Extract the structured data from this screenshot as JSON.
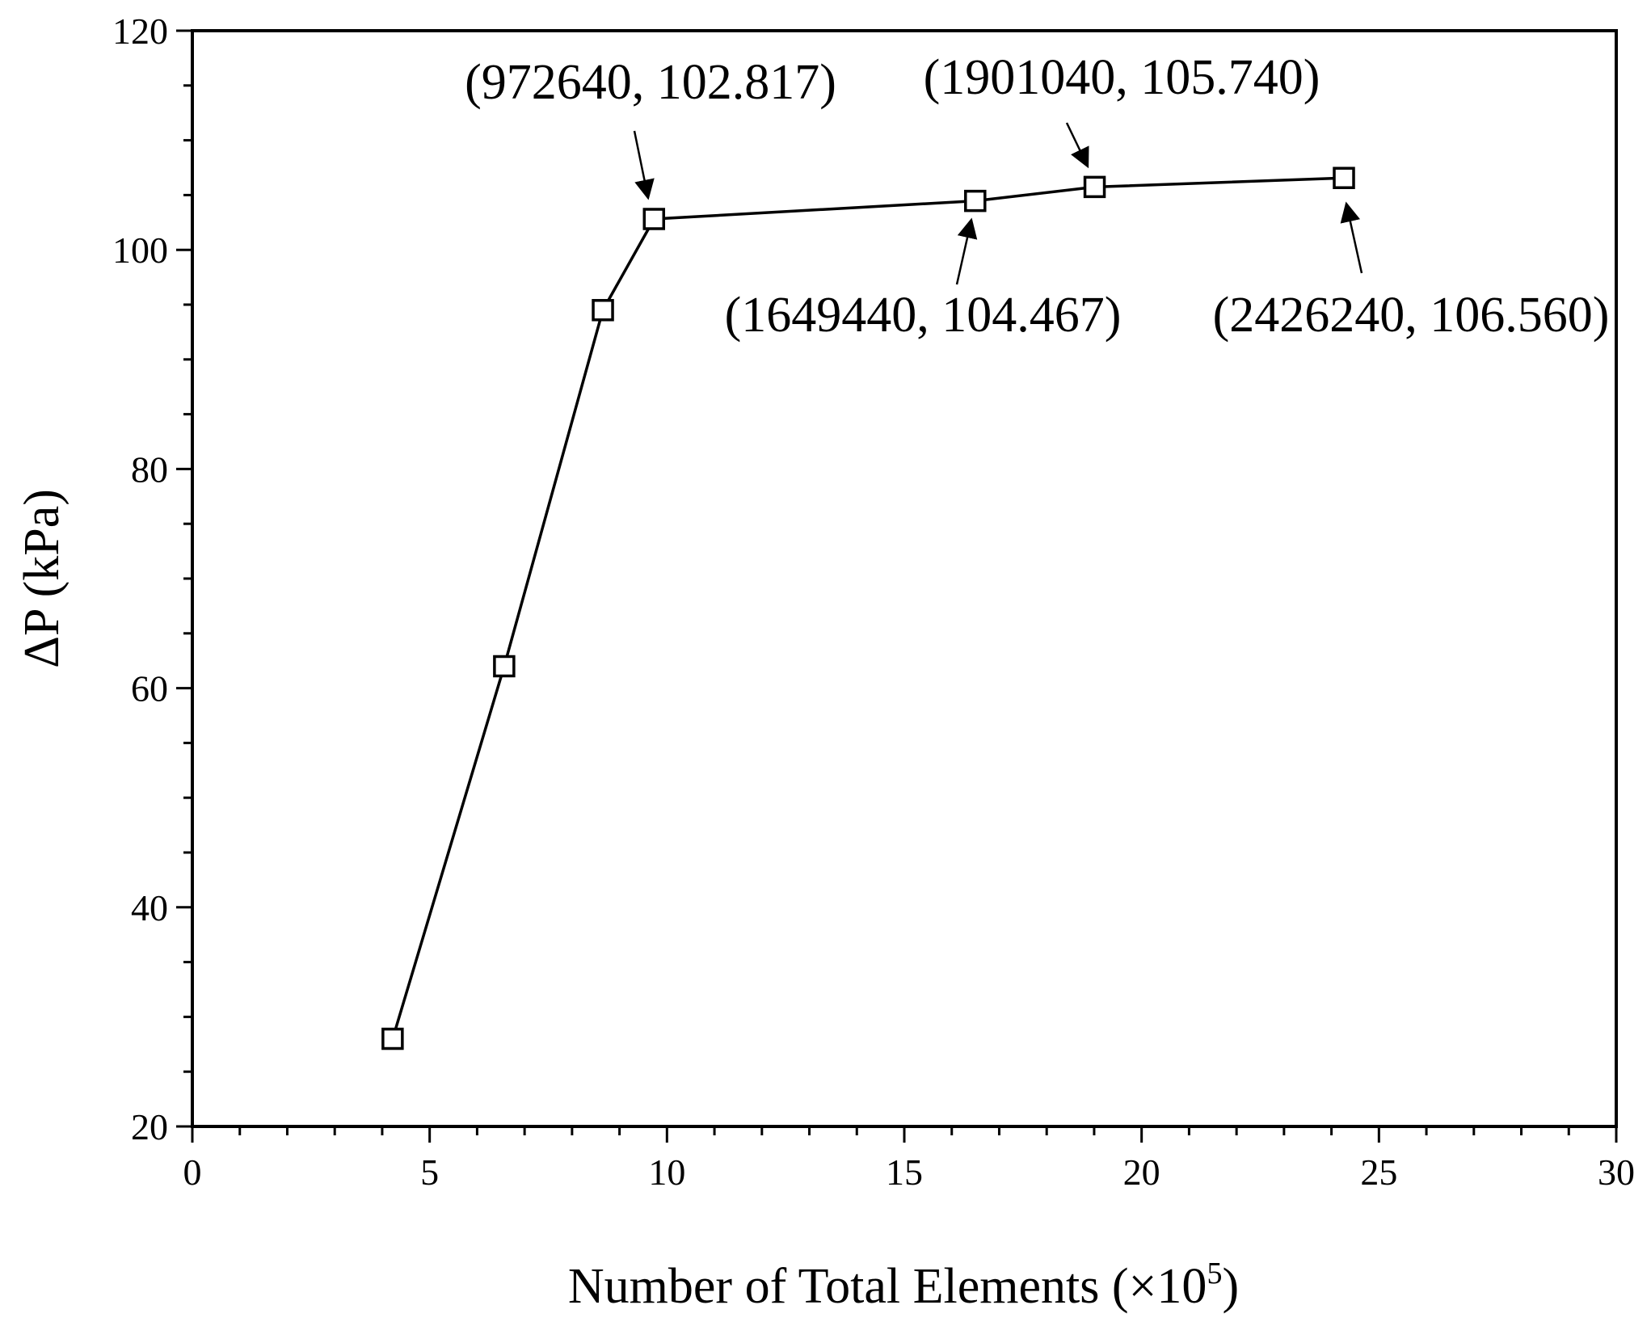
{
  "chart_data": {
    "type": "line",
    "xlabel": "Number of Total Elements (×10⁵)",
    "xlabel_parts": {
      "main": "Number of Total Elements (×10",
      "superscript": "5",
      "close": ")"
    },
    "ylabel": "ΔP (kPa)",
    "xlim": [
      0,
      30
    ],
    "ylim": [
      20,
      120
    ],
    "x_ticks": [
      "0",
      "5",
      "10",
      "15",
      "20",
      "25",
      "30"
    ],
    "y_ticks": [
      "20",
      "40",
      "60",
      "80",
      "100",
      "120"
    ],
    "grid": false,
    "series": [
      {
        "marker": "open-square",
        "color": "#000000",
        "x": [
          4.22,
          6.57,
          8.65,
          9.7264,
          16.4944,
          19.0104,
          24.2624
        ],
        "y": [
          28.0,
          62.0,
          94.5,
          102.817,
          104.467,
          105.74,
          106.56
        ]
      }
    ],
    "annotations": [
      {
        "text": "(972640, 102.817)",
        "x": 9.7264,
        "y": 102.817
      },
      {
        "text": "(1901040, 105.740)",
        "x": 19.0104,
        "y": 105.74
      },
      {
        "text": "(1649440, 104.467)",
        "x": 16.4944,
        "y": 104.467
      },
      {
        "text": "(2426240, 106.560)",
        "x": 24.2624,
        "y": 106.56
      }
    ]
  }
}
